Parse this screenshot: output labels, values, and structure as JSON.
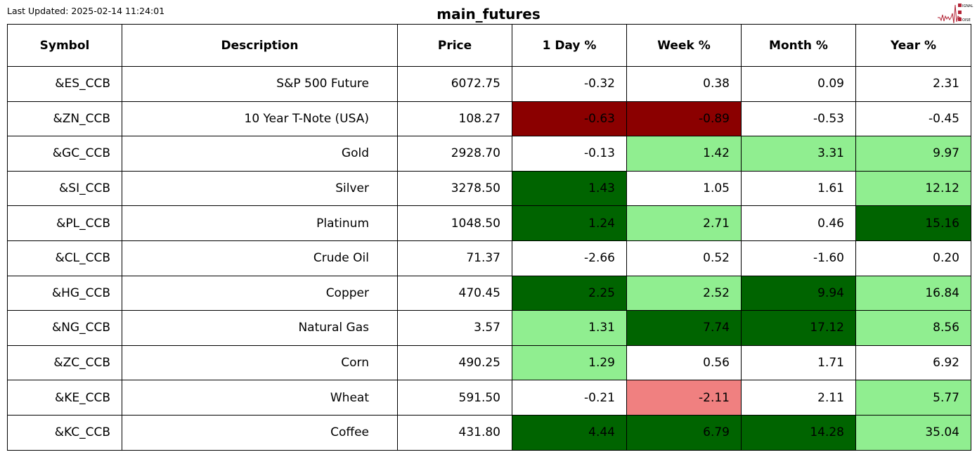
{
  "last_updated": "Last Updated: 2025-02-14 11:24:01",
  "title": "main_futures",
  "logo": {
    "text": "SIGNAL 2 NOISE",
    "color": "#b22234"
  },
  "colors": {
    "strong_negative": "#8b0000",
    "negative": "#f08080",
    "positive": "#90ee90",
    "strong_positive": "#006400",
    "neutral": "#ffffff"
  },
  "columns": [
    "Symbol",
    "Description",
    "Price",
    "1 Day %",
    "Week %",
    "Month %",
    "Year %"
  ],
  "rows": [
    {
      "cells": [
        "&ES_CCB",
        "S&P 500 Future",
        "6072.75",
        "-0.32",
        "0.38",
        "0.09",
        "2.31"
      ],
      "colors": [
        "neutral",
        "neutral",
        "neutral",
        "neutral"
      ]
    },
    {
      "cells": [
        "&ZN_CCB",
        "10 Year T-Note (USA)",
        "108.27",
        "-0.63",
        "-0.89",
        "-0.53",
        "-0.45"
      ],
      "colors": [
        "strong_negative",
        "strong_negative",
        "neutral",
        "neutral"
      ]
    },
    {
      "cells": [
        "&GC_CCB",
        "Gold",
        "2928.70",
        "-0.13",
        "1.42",
        "3.31",
        "9.97"
      ],
      "colors": [
        "neutral",
        "positive",
        "positive",
        "positive"
      ]
    },
    {
      "cells": [
        "&SI_CCB",
        "Silver",
        "3278.50",
        "1.43",
        "1.05",
        "1.61",
        "12.12"
      ],
      "colors": [
        "strong_positive",
        "neutral",
        "neutral",
        "positive"
      ]
    },
    {
      "cells": [
        "&PL_CCB",
        "Platinum",
        "1048.50",
        "1.24",
        "2.71",
        "0.46",
        "15.16"
      ],
      "colors": [
        "strong_positive",
        "positive",
        "neutral",
        "strong_positive"
      ]
    },
    {
      "cells": [
        "&CL_CCB",
        "Crude Oil",
        "71.37",
        "-2.66",
        "0.52",
        "-1.60",
        "0.20"
      ],
      "colors": [
        "neutral",
        "neutral",
        "neutral",
        "neutral"
      ]
    },
    {
      "cells": [
        "&HG_CCB",
        "Copper",
        "470.45",
        "2.25",
        "2.52",
        "9.94",
        "16.84"
      ],
      "colors": [
        "strong_positive",
        "positive",
        "strong_positive",
        "positive"
      ]
    },
    {
      "cells": [
        "&NG_CCB",
        "Natural Gas",
        "3.57",
        "1.31",
        "7.74",
        "17.12",
        "8.56"
      ],
      "colors": [
        "positive",
        "strong_positive",
        "strong_positive",
        "positive"
      ]
    },
    {
      "cells": [
        "&ZC_CCB",
        "Corn",
        "490.25",
        "1.29",
        "0.56",
        "1.71",
        "6.92"
      ],
      "colors": [
        "positive",
        "neutral",
        "neutral",
        "neutral"
      ]
    },
    {
      "cells": [
        "&KE_CCB",
        "Wheat",
        "591.50",
        "-0.21",
        "-2.11",
        "2.11",
        "5.77"
      ],
      "colors": [
        "neutral",
        "negative",
        "neutral",
        "positive"
      ]
    },
    {
      "cells": [
        "&KC_CCB",
        "Coffee",
        "431.80",
        "4.44",
        "6.79",
        "14.28",
        "35.04"
      ],
      "colors": [
        "strong_positive",
        "strong_positive",
        "strong_positive",
        "positive"
      ]
    }
  ]
}
